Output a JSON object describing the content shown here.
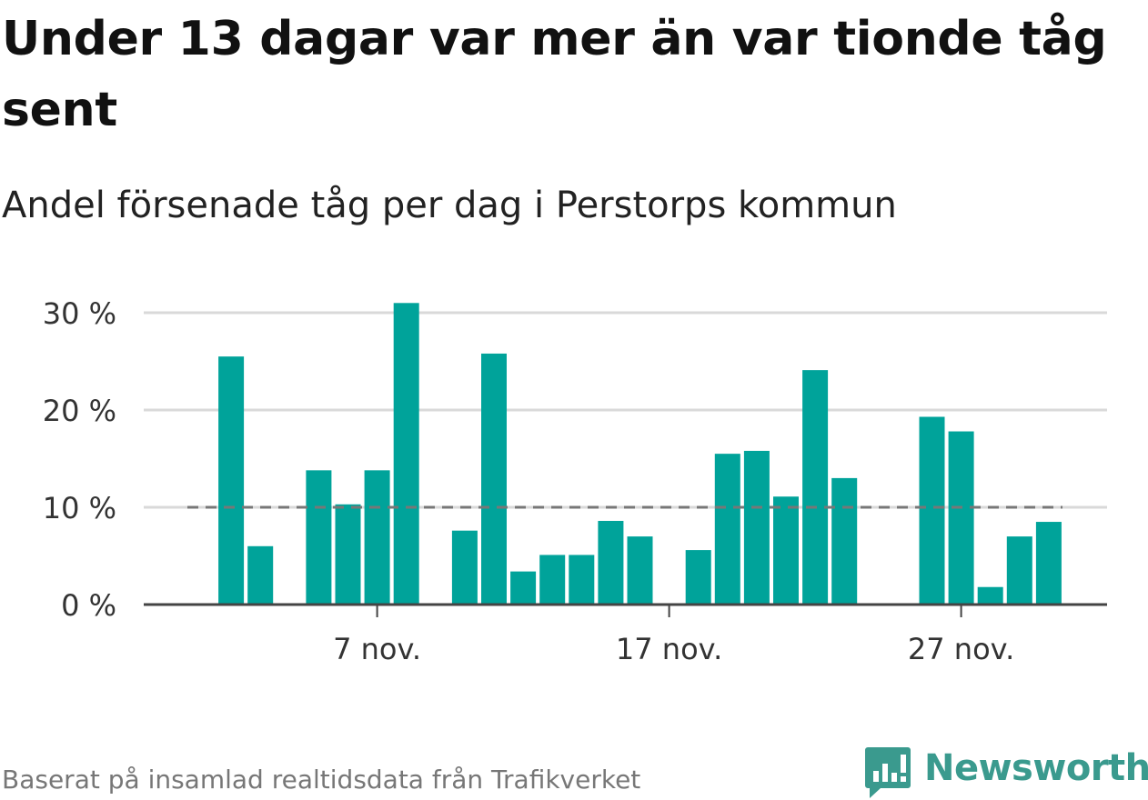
{
  "title": "Under 13 dagar var mer än var tionde tåg sent",
  "subtitle": "Andel försenade tåg per dag i Perstorps kommun",
  "footer": "Baserat på insamlad realtidsdata från Trafikverket",
  "logo_text": "Newsworthy",
  "colors": {
    "bar": "#00a39a",
    "reference_line": "#777777",
    "grid": "#d9d9d9",
    "axis": "#444444",
    "logo": "#3a9a8e"
  },
  "chart_data": {
    "type": "bar",
    "x_unit": "day of November",
    "x": [
      1,
      2,
      3,
      4,
      5,
      6,
      7,
      8,
      9,
      10,
      11,
      12,
      13,
      14,
      15,
      16,
      17,
      18,
      19,
      20,
      21,
      22,
      23,
      24,
      25,
      26,
      27,
      28,
      29,
      30
    ],
    "values": [
      null,
      25.5,
      6,
      null,
      13.8,
      10.3,
      13.8,
      31,
      null,
      7.6,
      25.8,
      3.4,
      5.1,
      5.1,
      8.6,
      7,
      null,
      5.6,
      15.5,
      15.8,
      11.1,
      24.1,
      13,
      null,
      null,
      19.3,
      17.8,
      1.8,
      7,
      8.5
    ],
    "ylim": [
      0,
      30
    ],
    "yticks": [
      0,
      10,
      20,
      30
    ],
    "ytick_labels": [
      "0 %",
      "10 %",
      "20 %",
      "30 %"
    ],
    "xticks": [
      7,
      17,
      27
    ],
    "xtick_labels": [
      "7 nov.",
      "17 nov.",
      "27 nov."
    ],
    "reference_line": 10,
    "grid": true,
    "xlabel": "",
    "ylabel": ""
  }
}
